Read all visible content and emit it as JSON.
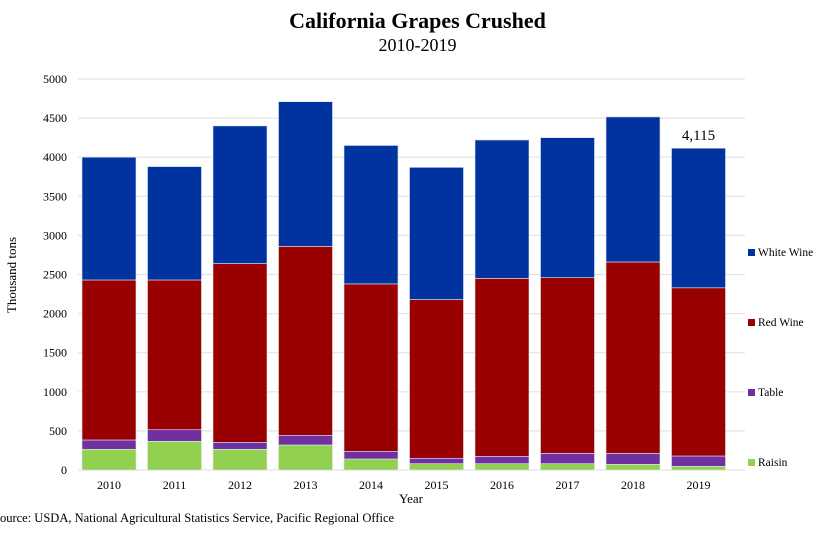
{
  "chart_data": {
    "type": "bar",
    "stacked": true,
    "title": "California Grapes Crushed",
    "subtitle": "2010-2019",
    "xlabel": "Year",
    "ylabel": "Thousand tons",
    "ylim": [
      0,
      5000
    ],
    "yticks": [
      0,
      500,
      1000,
      1500,
      2000,
      2500,
      3000,
      3500,
      4000,
      4500,
      5000
    ],
    "grid": true,
    "legend_position": "right",
    "categories": [
      "2010",
      "2011",
      "2012",
      "2013",
      "2014",
      "2015",
      "2016",
      "2017",
      "2018",
      "2019"
    ],
    "series": [
      {
        "name": "Raisin",
        "color": "#92d050",
        "values": [
          265,
          367,
          265,
          320,
          141,
          81,
          81,
          81,
          73,
          47
        ]
      },
      {
        "name": "Table",
        "color": "#7030a0",
        "values": [
          119,
          148,
          89,
          124,
          98,
          69,
          94,
          132,
          140,
          132
        ]
      },
      {
        "name": "Red Wine",
        "color": "#990000",
        "values": [
          2046,
          1915,
          2286,
          2416,
          2141,
          2030,
          2275,
          2247,
          2447,
          2151
        ]
      },
      {
        "name": "White Wine",
        "color": "#0033a0",
        "values": [
          1570,
          1450,
          1760,
          1850,
          1770,
          1690,
          1770,
          1790,
          1855,
          1785
        ]
      }
    ],
    "annotations": [
      {
        "category": "2019",
        "text": "4,115"
      }
    ]
  },
  "source": "Source: USDA, National Agricultural Statistics Service, Pacific Regional Office"
}
